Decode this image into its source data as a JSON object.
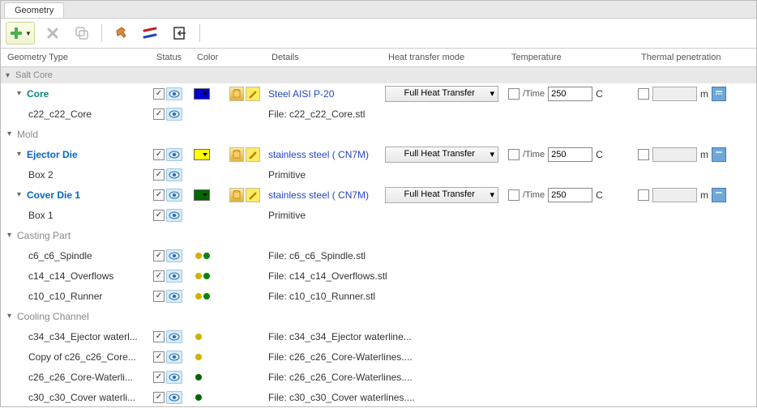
{
  "tab": {
    "label": "Geometry"
  },
  "columns": {
    "name": "Geometry Type",
    "status": "Status",
    "color": "Color",
    "details": "Details",
    "heat": "Heat transfer mode",
    "temp": "Temperature",
    "thermal": "Thermal penetration"
  },
  "heat_option": "Full Heat Transfer",
  "time_label": "/Time",
  "unit_c": "C",
  "unit_m": "m",
  "groups": {
    "saltcore": {
      "label": "Salt Core"
    },
    "mold": {
      "label": "Mold"
    },
    "casting": {
      "label": "Casting Part"
    },
    "cooling": {
      "label": "Cooling Channel"
    }
  },
  "rows": {
    "core": {
      "name": "Core",
      "details": "Steel AISI P-20",
      "temp": "250",
      "color": "#0000d0"
    },
    "core_child": {
      "name": "c22_c22_Core",
      "details": "File: c22_c22_Core.stl"
    },
    "ejector": {
      "name": "Ejector Die",
      "details": "stainless steel ( CN7M)",
      "temp": "250",
      "color": "#ffff00"
    },
    "box2": {
      "name": "Box 2",
      "details": "Primitive"
    },
    "cover": {
      "name": "Cover Die 1",
      "details": "stainless steel ( CN7M)",
      "temp": "250",
      "color": "#006600"
    },
    "box1": {
      "name": "Box 1",
      "details": "Primitive"
    },
    "spindle": {
      "name": "c6_c6_Spindle",
      "details": "File: c6_c6_Spindle.stl",
      "dots": [
        "#d0b000",
        "#008800"
      ]
    },
    "overflows": {
      "name": "c14_c14_Overflows",
      "details": "File: c14_c14_Overflows.stl",
      "dots": [
        "#d0b000",
        "#008800"
      ]
    },
    "runner": {
      "name": "c10_c10_Runner",
      "details": "File: c10_c10_Runner.stl",
      "dots": [
        "#d0b000",
        "#008800"
      ]
    },
    "ej_water": {
      "name": "c34_c34_Ejector waterl...",
      "details": "File: c34_c34_Ejector waterline...",
      "dots": [
        "#d0b000"
      ]
    },
    "copy_core": {
      "name": "Copy of c26_c26_Core...",
      "details": "File: c26_c26_Core-Waterlines....",
      "dots": [
        "#d0b000"
      ]
    },
    "core_water": {
      "name": "c26_c26_Core-Waterli...",
      "details": "File: c26_c26_Core-Waterlines....",
      "dots": [
        "#006600"
      ]
    },
    "cover_water": {
      "name": "c30_c30_Cover waterli...",
      "details": "File: c30_c30_Cover waterlines....",
      "dots": [
        "#006600"
      ]
    }
  },
  "colors": {
    "add_btn": "#4caf50",
    "hammer": "#d98c3a",
    "tool2a": "#c02020",
    "tool2b": "#2040c0"
  }
}
